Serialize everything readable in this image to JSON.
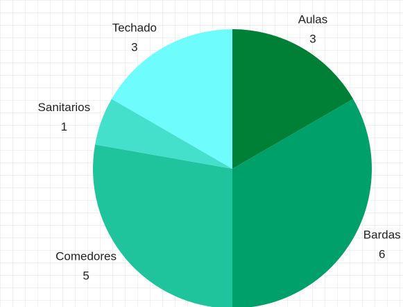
{
  "chart_data": {
    "type": "pie",
    "categories": [
      "Aulas",
      "Bardas",
      "Comedores",
      "Sanitarios",
      "Techado"
    ],
    "values": [
      3,
      6,
      5,
      1,
      3
    ],
    "colors": [
      "#008037",
      "#00a06a",
      "#20c49c",
      "#44e0cc",
      "#6ffcfc"
    ]
  }
}
